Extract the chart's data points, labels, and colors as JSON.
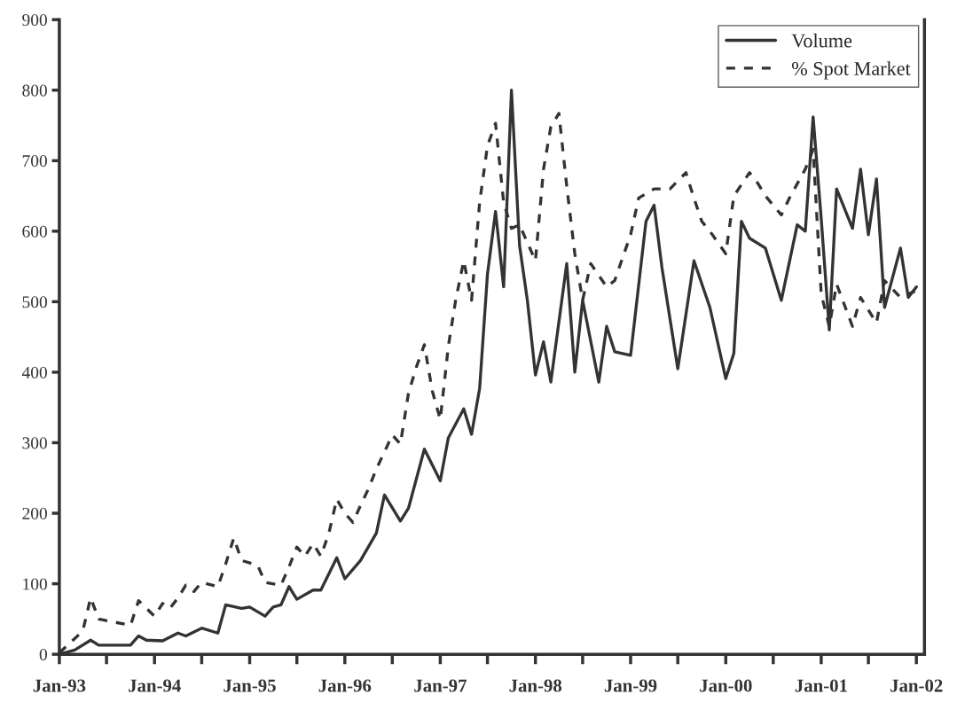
{
  "chart_data": {
    "type": "line",
    "xlim": [
      "1993-01",
      "2002-02"
    ],
    "ylim": [
      0,
      900
    ],
    "yticks": [
      0,
      100,
      200,
      300,
      400,
      500,
      600,
      700,
      800,
      900
    ],
    "xticks": [
      {
        "value": "1993-01",
        "label": "Jan-93"
      },
      {
        "value": "1993-07",
        "label": null
      },
      {
        "value": "1994-01",
        "label": "Jan-94"
      },
      {
        "value": "1994-07",
        "label": null
      },
      {
        "value": "1995-01",
        "label": "Jan-95"
      },
      {
        "value": "1995-07",
        "label": null
      },
      {
        "value": "1996-01",
        "label": "Jan-96"
      },
      {
        "value": "1996-07",
        "label": null
      },
      {
        "value": "1997-01",
        "label": "Jan-97"
      },
      {
        "value": "1997-07",
        "label": null
      },
      {
        "value": "1998-01",
        "label": "Jan-98"
      },
      {
        "value": "1998-07",
        "label": null
      },
      {
        "value": "1999-01",
        "label": "Jan-99"
      },
      {
        "value": "1999-07",
        "label": null
      },
      {
        "value": "2000-01",
        "label": "Jan-00"
      },
      {
        "value": "2000-07",
        "label": null
      },
      {
        "value": "2001-01",
        "label": "Jan-01"
      },
      {
        "value": "2001-07",
        "label": null
      },
      {
        "value": "2002-01",
        "label": "Jan-02"
      }
    ],
    "grid": false,
    "legend": "top right",
    "series": [
      {
        "name": "Volume",
        "color": "#333333",
        "line_style": "solid",
        "x": [
          "1993-01",
          "1993-03",
          "1993-05",
          "1993-06",
          "1993-10",
          "1993-11",
          "1993-12",
          "1994-02",
          "1994-04",
          "1994-05",
          "1994-07",
          "1994-09",
          "1994-10",
          "1994-12",
          "1995-01",
          "1995-03",
          "1995-04",
          "1995-05",
          "1995-06",
          "1995-07",
          "1995-09",
          "1995-10",
          "1995-12",
          "1996-01",
          "1996-03",
          "1996-05",
          "1996-06",
          "1996-08",
          "1996-09",
          "1996-11",
          "1997-01",
          "1997-02",
          "1997-04",
          "1997-05",
          "1997-06",
          "1997-07",
          "1997-08",
          "1997-09",
          "1997-10",
          "1997-11",
          "1997-12",
          "1998-01",
          "1998-02",
          "1998-03",
          "1998-05",
          "1998-06",
          "1998-07",
          "1998-09",
          "1998-10",
          "1998-11",
          "1999-01",
          "1999-03",
          "1999-04",
          "1999-05",
          "1999-07",
          "1999-09",
          "1999-11",
          "2000-01",
          "2000-02",
          "2000-03",
          "2000-04",
          "2000-06",
          "2000-08",
          "2000-10",
          "2000-11",
          "2000-12",
          "2001-01",
          "2001-02",
          "2001-03",
          "2001-05",
          "2001-06",
          "2001-07",
          "2001-08",
          "2001-09",
          "2001-11",
          "2001-12",
          "2002-01"
        ],
        "values": [
          0,
          6,
          20,
          13,
          13,
          26,
          20,
          19,
          30,
          26,
          37,
          30,
          70,
          65,
          67,
          54,
          67,
          70,
          96,
          78,
          91,
          91,
          137,
          107,
          133,
          172,
          226,
          189,
          207,
          291,
          246,
          307,
          348,
          312,
          377,
          539,
          628,
          521,
          800,
          580,
          502,
          396,
          443,
          386,
          554,
          400,
          502,
          386,
          465,
          429,
          424,
          614,
          637,
          549,
          405,
          558,
          492,
          391,
          427,
          614,
          590,
          576,
          502,
          609,
          600,
          762,
          618,
          460,
          660,
          604,
          688,
          595,
          674,
          492,
          576,
          506,
          521
        ]
      },
      {
        "name": "% Spot Market",
        "color": "#333333",
        "line_style": "dashed",
        "x": [
          "1993-01",
          "1993-04",
          "1993-05",
          "1993-06",
          "1993-10",
          "1993-11",
          "1994-01",
          "1994-02",
          "1994-03",
          "1994-04",
          "1994-05",
          "1994-06",
          "1994-07",
          "1994-09",
          "1994-10",
          "1994-11",
          "1994-12",
          "1995-02",
          "1995-03",
          "1995-05",
          "1995-06",
          "1995-07",
          "1995-08",
          "1995-09",
          "1995-10",
          "1995-11",
          "1995-12",
          "1996-01",
          "1996-02",
          "1996-03",
          "1996-04",
          "1996-05",
          "1996-06",
          "1996-07",
          "1996-08",
          "1996-09",
          "1996-10",
          "1996-11",
          "1996-12",
          "1997-01",
          "1997-02",
          "1997-03",
          "1997-04",
          "1997-05",
          "1997-06",
          "1997-07",
          "1997-08",
          "1997-09",
          "1997-10",
          "1997-11",
          "1998-01",
          "1998-02",
          "1998-03",
          "1998-04",
          "1998-05",
          "1998-06",
          "1998-07",
          "1998-08",
          "1998-10",
          "1998-11",
          "1999-01",
          "1999-02",
          "1999-04",
          "1999-06",
          "1999-08",
          "1999-09",
          "1999-10",
          "1999-11",
          "2000-01",
          "2000-02",
          "2000-04",
          "2000-05",
          "2000-06",
          "2000-08",
          "2000-09",
          "2000-11",
          "2000-12",
          "2001-01",
          "2001-02",
          "2001-03",
          "2001-05",
          "2001-06",
          "2001-08",
          "2001-09",
          "2001-11",
          "2002-01"
        ],
        "values": [
          2,
          33,
          80,
          50,
          41,
          76,
          54,
          72,
          65,
          80,
          98,
          89,
          102,
          96,
          128,
          165,
          133,
          126,
          102,
          98,
          124,
          152,
          139,
          157,
          139,
          172,
          220,
          200,
          187,
          211,
          235,
          263,
          287,
          311,
          298,
          370,
          407,
          439,
          374,
          333,
          437,
          502,
          558,
          502,
          641,
          721,
          753,
          641,
          604,
          609,
          558,
          688,
          748,
          767,
          664,
          568,
          502,
          554,
          521,
          530,
          595,
          647,
          660,
          660,
          683,
          647,
          614,
          600,
          568,
          650,
          683,
          669,
          650,
          623,
          647,
          688,
          716,
          511,
          465,
          525,
          465,
          506,
          470,
          530,
          506,
          516
        ]
      }
    ]
  }
}
